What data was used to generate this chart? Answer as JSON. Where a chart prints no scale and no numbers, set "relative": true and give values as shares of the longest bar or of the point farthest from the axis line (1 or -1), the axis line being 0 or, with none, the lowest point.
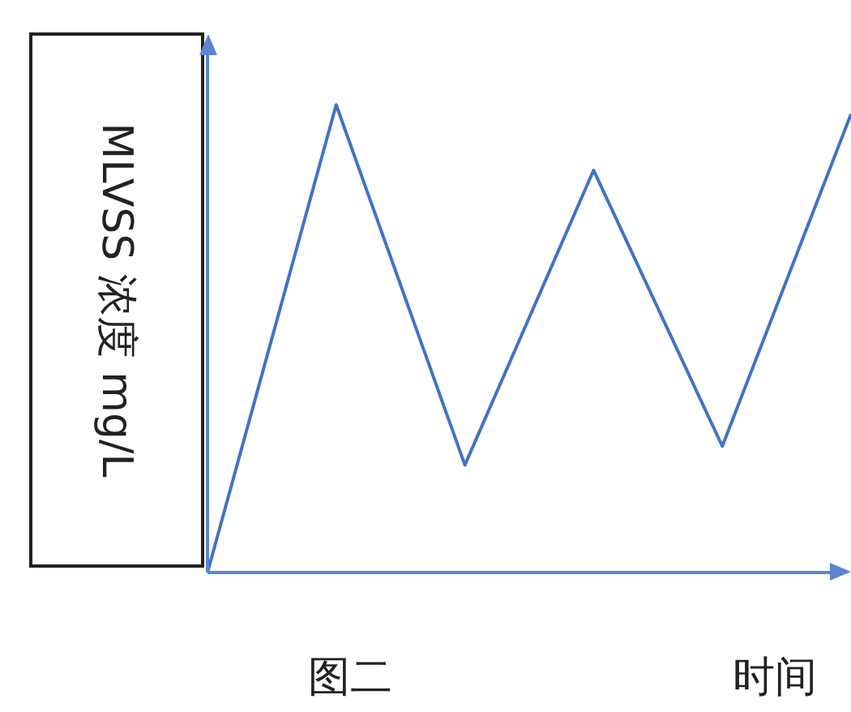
{
  "chart_data": {
    "type": "line",
    "relative": true,
    "xlabel": "时间",
    "ylabel": "MLVSS 浓度 mg/L",
    "annotations": [
      "图二"
    ],
    "categories": [
      null,
      null,
      null,
      null,
      null,
      null
    ],
    "series": [
      {
        "color": "#4472c4",
        "values": [
          0,
          1,
          0.23,
          0.86,
          0.27,
          0.98
        ]
      }
    ]
  }
}
